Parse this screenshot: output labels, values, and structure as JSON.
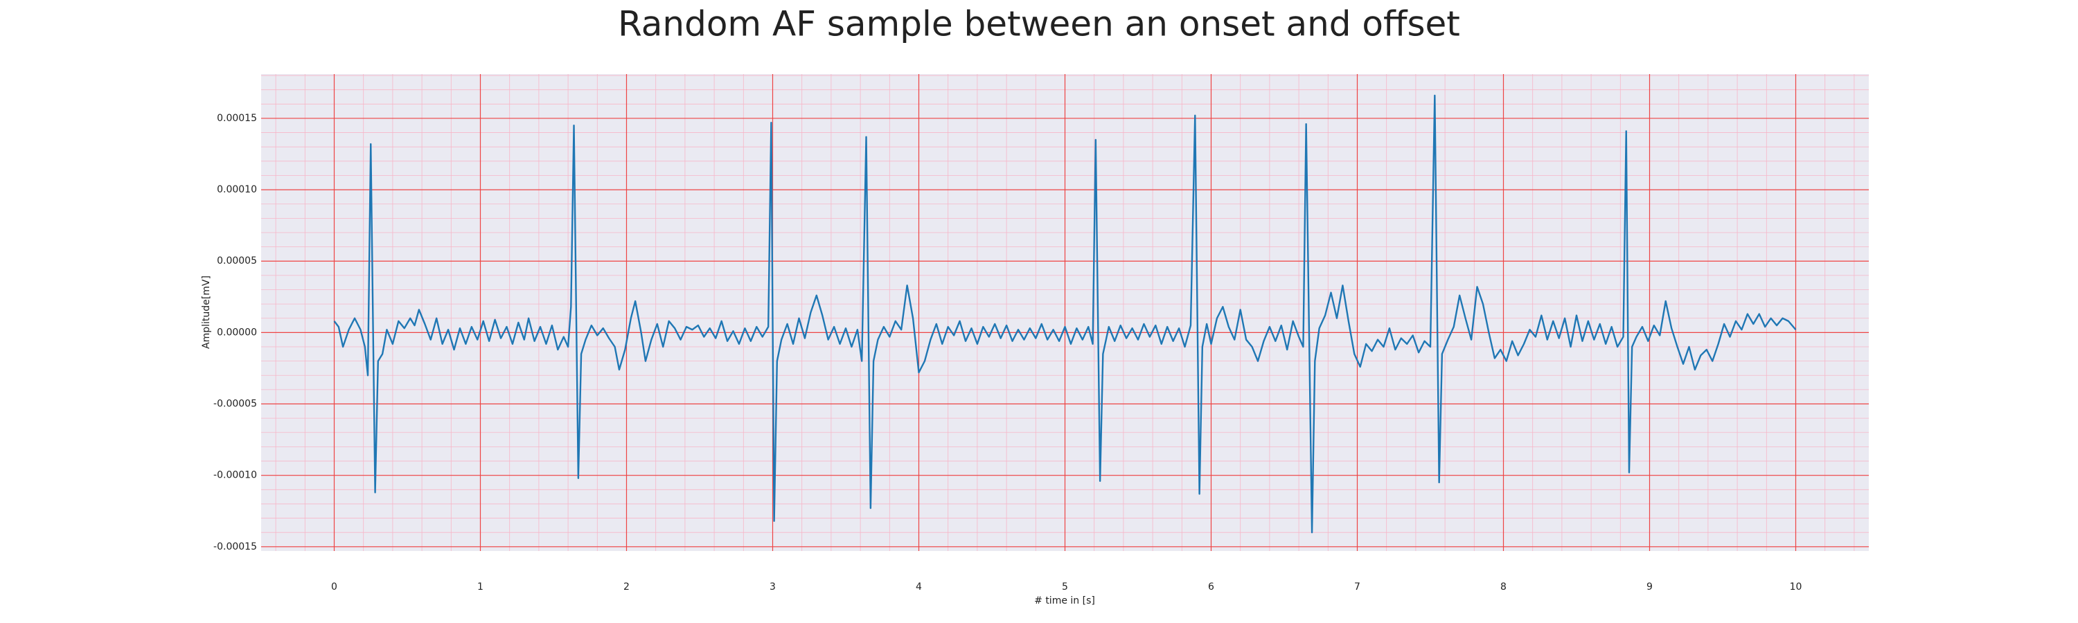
{
  "chart_data": {
    "type": "line",
    "title": "Random AF sample between an onset and offset",
    "x_label": "# time in [s]",
    "y_label": "Amplitude[mV]",
    "xlim": [
      -0.5,
      10.5
    ],
    "ylim": [
      -0.000153,
      0.000181
    ],
    "xticks": [
      0,
      1,
      2,
      3,
      4,
      5,
      6,
      7,
      8,
      9,
      10
    ],
    "yticks": [
      -0.00015,
      {
        "value": -0.0001,
        "label": "-0.00010"
      },
      -5e-05,
      {
        "value": 0,
        "label": "0.00000"
      },
      5e-05,
      {
        "value": 0.0001,
        "label": "0.00010"
      },
      0.00015
    ],
    "grid": true,
    "minor_grid": true,
    "x": [
      0,
      0.03,
      0.06,
      0.1,
      0.14,
      0.18,
      0.21,
      0.23,
      0.25,
      0.28,
      0.3,
      0.33,
      0.36,
      0.4,
      0.44,
      0.48,
      0.52,
      0.55,
      0.58,
      0.62,
      0.66,
      0.7,
      0.74,
      0.78,
      0.82,
      0.86,
      0.9,
      0.94,
      0.98,
      1.02,
      1.06,
      1.1,
      1.14,
      1.18,
      1.22,
      1.26,
      1.3,
      1.33,
      1.37,
      1.41,
      1.45,
      1.49,
      1.53,
      1.57,
      1.6,
      1.62,
      1.64,
      1.67,
      1.69,
      1.72,
      1.76,
      1.8,
      1.84,
      1.88,
      1.92,
      1.95,
      1.99,
      2.03,
      2.06,
      2.1,
      2.13,
      2.17,
      2.21,
      2.25,
      2.29,
      2.33,
      2.37,
      2.41,
      2.45,
      2.49,
      2.53,
      2.57,
      2.61,
      2.65,
      2.69,
      2.73,
      2.77,
      2.81,
      2.85,
      2.89,
      2.93,
      2.97,
      2.99,
      3.01,
      3.03,
      3.06,
      3.1,
      3.14,
      3.18,
      3.22,
      3.26,
      3.3,
      3.34,
      3.38,
      3.42,
      3.46,
      3.5,
      3.54,
      3.58,
      3.61,
      3.64,
      3.67,
      3.69,
      3.72,
      3.76,
      3.8,
      3.84,
      3.88,
      3.92,
      3.96,
      4.0,
      4.04,
      4.08,
      4.12,
      4.16,
      4.2,
      4.24,
      4.28,
      4.32,
      4.36,
      4.4,
      4.44,
      4.48,
      4.52,
      4.56,
      4.6,
      4.64,
      4.68,
      4.72,
      4.76,
      4.8,
      4.84,
      4.88,
      4.92,
      4.96,
      5.0,
      5.04,
      5.08,
      5.12,
      5.16,
      5.19,
      5.21,
      5.24,
      5.26,
      5.3,
      5.34,
      5.38,
      5.42,
      5.46,
      5.5,
      5.54,
      5.58,
      5.62,
      5.66,
      5.7,
      5.74,
      5.78,
      5.82,
      5.86,
      5.89,
      5.92,
      5.94,
      5.97,
      6.0,
      6.04,
      6.08,
      6.12,
      6.16,
      6.2,
      6.24,
      6.28,
      6.32,
      6.36,
      6.4,
      6.44,
      6.48,
      6.52,
      6.56,
      6.6,
      6.63,
      6.65,
      6.69,
      6.71,
      6.74,
      6.78,
      6.82,
      6.86,
      6.9,
      6.94,
      6.98,
      7.02,
      7.06,
      7.1,
      7.14,
      7.18,
      7.22,
      7.26,
      7.3,
      7.34,
      7.38,
      7.42,
      7.46,
      7.5,
      7.53,
      7.56,
      7.58,
      7.62,
      7.66,
      7.7,
      7.74,
      7.78,
      7.82,
      7.86,
      7.9,
      7.94,
      7.98,
      8.02,
      8.06,
      8.1,
      8.14,
      8.18,
      8.22,
      8.26,
      8.3,
      8.34,
      8.38,
      8.42,
      8.46,
      8.5,
      8.54,
      8.58,
      8.62,
      8.66,
      8.7,
      8.74,
      8.78,
      8.82,
      8.84,
      8.86,
      8.88,
      8.91,
      8.95,
      8.99,
      9.03,
      9.07,
      9.11,
      9.15,
      9.19,
      9.23,
      9.27,
      9.31,
      9.35,
      9.39,
      9.43,
      9.47,
      9.51,
      9.55,
      9.59,
      9.63,
      9.67,
      9.71,
      9.75,
      9.79,
      9.83,
      9.87,
      9.91,
      9.95,
      10.0
    ],
    "series": [
      {
        "color": "#1f77b4",
        "values": [
          8e-06,
          4e-06,
          -1e-05,
          2e-06,
          1e-05,
          2e-06,
          -1e-05,
          -3e-05,
          0.000132,
          -0.000112,
          -2e-05,
          -1.5e-05,
          2e-06,
          -8e-06,
          8e-06,
          3e-06,
          1e-05,
          5e-06,
          1.6e-05,
          6e-06,
          -5e-06,
          1e-05,
          -8e-06,
          2e-06,
          -1.2e-05,
          3e-06,
          -8e-06,
          4e-06,
          -5e-06,
          8e-06,
          -6e-06,
          9e-06,
          -4e-06,
          4e-06,
          -8e-06,
          7e-06,
          -5e-06,
          1e-05,
          -6e-06,
          4e-06,
          -8e-06,
          5e-06,
          -1.2e-05,
          -3e-06,
          -1e-05,
          1.8e-05,
          0.000145,
          -0.000102,
          -1.5e-05,
          -5e-06,
          5e-06,
          -2e-06,
          3e-06,
          -4e-06,
          -1e-05,
          -2.6e-05,
          -1.2e-05,
          1e-05,
          2.2e-05,
          0,
          -2e-05,
          -5e-06,
          6e-06,
          -1e-05,
          8e-06,
          3e-06,
          -5e-06,
          4e-06,
          2e-06,
          5e-06,
          -3e-06,
          3e-06,
          -4e-06,
          8e-06,
          -6e-06,
          1e-06,
          -8e-06,
          3e-06,
          -6e-06,
          4e-06,
          -3e-06,
          4e-06,
          0.000147,
          -0.000132,
          -2e-05,
          -5e-06,
          6e-06,
          -8e-06,
          1e-05,
          -4e-06,
          1.4e-05,
          2.6e-05,
          1.2e-05,
          -5e-06,
          4e-06,
          -8e-06,
          3e-06,
          -1e-05,
          2e-06,
          -2e-05,
          0.000137,
          -0.000123,
          -2e-05,
          -5e-06,
          4e-06,
          -3e-06,
          8e-06,
          2e-06,
          3.3e-05,
          1e-05,
          -2.8e-05,
          -2e-05,
          -5e-06,
          6e-06,
          -8e-06,
          4e-06,
          -2e-06,
          8e-06,
          -6e-06,
          3e-06,
          -8e-06,
          4e-06,
          -3e-06,
          6e-06,
          -4e-06,
          5e-06,
          -6e-06,
          2e-06,
          -5e-06,
          3e-06,
          -4e-06,
          6e-06,
          -5e-06,
          2e-06,
          -6e-06,
          4e-06,
          -8e-06,
          3e-06,
          -5e-06,
          4e-06,
          -8e-06,
          0.000135,
          -0.000104,
          -1.5e-05,
          4e-06,
          -6e-06,
          5e-06,
          -4e-06,
          3e-06,
          -5e-06,
          6e-06,
          -3e-06,
          5e-06,
          -8e-06,
          4e-06,
          -6e-06,
          3e-06,
          -1e-05,
          5e-06,
          0.000152,
          -0.000113,
          -1e-05,
          6e-06,
          -8e-06,
          1e-05,
          1.8e-05,
          4e-06,
          -5e-06,
          1.6e-05,
          -5e-06,
          -1e-05,
          -2e-05,
          -6e-06,
          4e-06,
          -6e-06,
          5e-06,
          -1.2e-05,
          8e-06,
          -3e-06,
          -1e-05,
          0.000146,
          -0.00014,
          -2e-05,
          3e-06,
          1.2e-05,
          2.8e-05,
          1e-05,
          3.3e-05,
          8e-06,
          -1.5e-05,
          -2.4e-05,
          -8e-06,
          -1.3e-05,
          -5e-06,
          -1e-05,
          3e-06,
          -1.2e-05,
          -4e-06,
          -8e-06,
          -2e-06,
          -1.4e-05,
          -6e-06,
          -1e-05,
          0.000166,
          -0.000105,
          -1.5e-05,
          -5e-06,
          4e-06,
          2.6e-05,
          1e-05,
          -5e-06,
          3.2e-05,
          2e-05,
          0,
          -1.8e-05,
          -1.2e-05,
          -2e-05,
          -6e-06,
          -1.6e-05,
          -8e-06,
          2e-06,
          -3e-06,
          1.2e-05,
          -5e-06,
          8e-06,
          -4e-06,
          1e-05,
          -1e-05,
          1.2e-05,
          -6e-06,
          8e-06,
          -5e-06,
          6e-06,
          -8e-06,
          4e-06,
          -1e-05,
          -3e-06,
          0.000141,
          -9.8e-05,
          -1e-05,
          -3e-06,
          4e-06,
          -6e-06,
          5e-06,
          -2e-06,
          2.2e-05,
          3e-06,
          -1e-05,
          -2.2e-05,
          -1e-05,
          -2.6e-05,
          -1.6e-05,
          -1.2e-05,
          -2e-05,
          -8e-06,
          6e-06,
          -3e-06,
          8e-06,
          2e-06,
          1.3e-05,
          6e-06,
          1.3e-05,
          4e-06,
          1e-05,
          5e-06,
          1e-05,
          8e-06,
          2e-06
        ]
      }
    ]
  }
}
